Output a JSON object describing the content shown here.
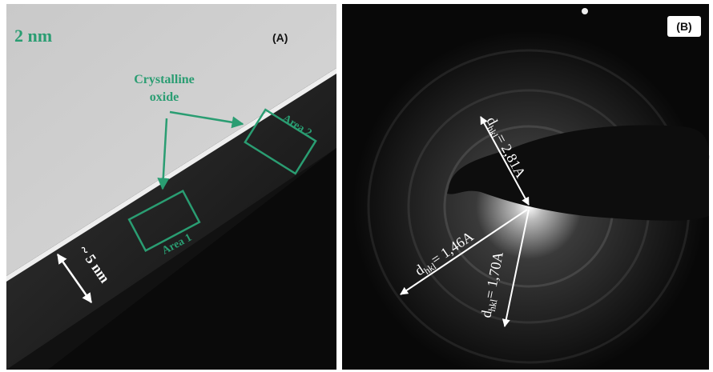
{
  "panel_a": {
    "label": "(A)",
    "scale_bar": "2 nm",
    "annotation": [
      "Crystalline",
      "oxide"
    ],
    "areas": [
      "Area 2",
      "Area 1"
    ],
    "thickness": "~ 5 nm"
  },
  "panel_b": {
    "label": "(B)",
    "spacings": [
      {
        "symbol": "d",
        "subscript": "hkl",
        "value": "= 2,81A"
      },
      {
        "symbol": "d",
        "subscript": "hkl",
        "value": "= 1,46A"
      },
      {
        "symbol": "d",
        "subscript": "hkl",
        "value": "= 1,70A"
      }
    ]
  }
}
